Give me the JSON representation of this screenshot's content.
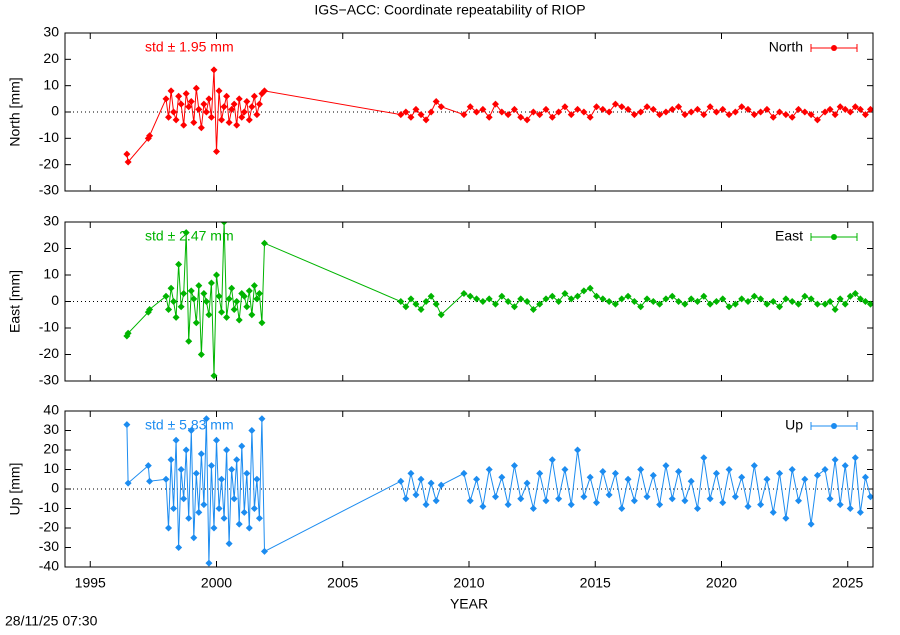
{
  "title": "IGS−ACC: Coordinate repeatability of RIOP",
  "xlabel": "YEAR",
  "footer": "28/11/25 07:30",
  "chart_data": [
    {
      "type": "line",
      "ylabel": "North [mm]",
      "annotation": "std ± 1.95 mm",
      "legend": "top right",
      "xlim": [
        1994,
        2026
      ],
      "xticks": [
        1995,
        2000,
        2005,
        2010,
        2015,
        2020,
        2025
      ],
      "ylim": [
        -30,
        30
      ],
      "yticks": [
        -30,
        -20,
        -10,
        0,
        10,
        20,
        30
      ],
      "x": [
        1996.45,
        1996.5,
        1997.3,
        1997.35,
        1998.0,
        1998.1,
        1998.2,
        1998.3,
        1998.4,
        1998.5,
        1998.6,
        1998.7,
        1998.8,
        1998.9,
        1999.0,
        1999.1,
        1999.2,
        1999.3,
        1999.4,
        1999.5,
        1999.6,
        1999.7,
        1999.8,
        1999.9,
        2000.0,
        2000.1,
        2000.2,
        2000.3,
        2000.4,
        2000.5,
        2000.6,
        2000.7,
        2000.8,
        2000.9,
        2001.0,
        2001.1,
        2001.2,
        2001.3,
        2001.4,
        2001.5,
        2001.6,
        2001.7,
        2001.8,
        2001.9,
        2007.3,
        2007.5,
        2007.7,
        2007.9,
        2008.1,
        2008.3,
        2008.5,
        2008.7,
        2008.9,
        2009.8,
        2010.05,
        2010.3,
        2010.55,
        2010.8,
        2011.05,
        2011.3,
        2011.55,
        2011.8,
        2012.05,
        2012.3,
        2012.55,
        2012.8,
        2013.05,
        2013.3,
        2013.55,
        2013.8,
        2014.05,
        2014.3,
        2014.55,
        2014.8,
        2015.05,
        2015.3,
        2015.55,
        2015.8,
        2016.05,
        2016.3,
        2016.55,
        2016.8,
        2017.05,
        2017.3,
        2017.55,
        2017.8,
        2018.05,
        2018.3,
        2018.55,
        2018.8,
        2019.05,
        2019.3,
        2019.55,
        2019.8,
        2020.05,
        2020.3,
        2020.55,
        2020.8,
        2021.05,
        2021.3,
        2021.55,
        2021.8,
        2022.05,
        2022.3,
        2022.55,
        2022.8,
        2023.05,
        2023.3,
        2023.55,
        2023.8,
        2024.1,
        2024.3,
        2024.5,
        2024.7,
        2024.9,
        2025.1,
        2025.3,
        2025.5,
        2025.7,
        2025.9
      ],
      "series": [
        {
          "name": "North",
          "color": "#ff0000",
          "values": [
            -16,
            -19,
            -10,
            -9,
            5,
            -2,
            8,
            0,
            -3,
            6,
            3,
            -5,
            7,
            2,
            4,
            -4,
            9,
            1,
            -6,
            3,
            0,
            5,
            -2,
            16,
            -15,
            8,
            -3,
            2,
            6,
            -4,
            1,
            3,
            -5,
            5,
            -2,
            0,
            4,
            -3,
            2,
            6,
            -1,
            3,
            7,
            8,
            -1,
            0,
            -2,
            1,
            -1,
            -3,
            0,
            4,
            2,
            -1,
            2,
            0,
            1,
            -2,
            3,
            0,
            -1,
            1,
            -2,
            -3,
            0,
            -1,
            1,
            -2,
            0,
            2,
            -1,
            1,
            0,
            -2,
            2,
            1,
            0,
            3,
            2,
            1,
            -1,
            0,
            2,
            1,
            -1,
            0,
            1,
            2,
            -1,
            0,
            1,
            -1,
            2,
            0,
            1,
            -1,
            0,
            2,
            1,
            -1,
            0,
            1,
            -2,
            0,
            -1,
            -2,
            1,
            0,
            -1,
            -3,
            0,
            1,
            -1,
            2,
            1,
            0,
            2,
            1,
            -1,
            1
          ]
        }
      ]
    },
    {
      "type": "line",
      "ylabel": "East [mm]",
      "annotation": "std ± 2.47 mm",
      "legend": "top right",
      "xlim": [
        1994,
        2026
      ],
      "xticks": [
        1995,
        2000,
        2005,
        2010,
        2015,
        2020,
        2025
      ],
      "ylim": [
        -30,
        30
      ],
      "yticks": [
        -30,
        -20,
        -10,
        0,
        10,
        20,
        30
      ],
      "x": [
        1996.45,
        1996.5,
        1997.3,
        1997.35,
        1998.0,
        1998.1,
        1998.2,
        1998.3,
        1998.4,
        1998.5,
        1998.6,
        1998.7,
        1998.8,
        1998.9,
        1999.0,
        1999.1,
        1999.2,
        1999.3,
        1999.4,
        1999.5,
        1999.6,
        1999.7,
        1999.8,
        1999.9,
        2000.0,
        2000.1,
        2000.2,
        2000.3,
        2000.4,
        2000.5,
        2000.6,
        2000.7,
        2000.8,
        2000.9,
        2001.0,
        2001.1,
        2001.2,
        2001.3,
        2001.4,
        2001.5,
        2001.6,
        2001.7,
        2001.8,
        2001.9,
        2007.3,
        2007.5,
        2007.7,
        2007.9,
        2008.1,
        2008.3,
        2008.5,
        2008.7,
        2008.9,
        2009.8,
        2010.05,
        2010.3,
        2010.55,
        2010.8,
        2011.05,
        2011.3,
        2011.55,
        2011.8,
        2012.05,
        2012.3,
        2012.55,
        2012.8,
        2013.05,
        2013.3,
        2013.55,
        2013.8,
        2014.05,
        2014.3,
        2014.55,
        2014.8,
        2015.05,
        2015.3,
        2015.55,
        2015.8,
        2016.05,
        2016.3,
        2016.55,
        2016.8,
        2017.05,
        2017.3,
        2017.55,
        2017.8,
        2018.05,
        2018.3,
        2018.55,
        2018.8,
        2019.05,
        2019.3,
        2019.55,
        2019.8,
        2020.05,
        2020.3,
        2020.55,
        2020.8,
        2021.05,
        2021.3,
        2021.55,
        2021.8,
        2022.05,
        2022.3,
        2022.55,
        2022.8,
        2023.05,
        2023.3,
        2023.55,
        2023.8,
        2024.1,
        2024.3,
        2024.5,
        2024.7,
        2024.9,
        2025.1,
        2025.3,
        2025.5,
        2025.7,
        2025.9
      ],
      "series": [
        {
          "name": "East",
          "color": "#00b400",
          "values": [
            -13,
            -12,
            -4,
            -3,
            2,
            -3,
            5,
            0,
            -6,
            14,
            -2,
            3,
            26,
            -15,
            4,
            1,
            -8,
            6,
            -20,
            3,
            0,
            -5,
            7,
            -28,
            10,
            2,
            -4,
            30,
            -6,
            1,
            5,
            -3,
            0,
            -7,
            3,
            2,
            -2,
            4,
            -5,
            6,
            1,
            3,
            -8,
            22,
            0,
            -2,
            1,
            -1,
            -3,
            0,
            2,
            -1,
            -5,
            3,
            2,
            1,
            0,
            1,
            -1,
            2,
            0,
            -2,
            1,
            0,
            -3,
            -1,
            1,
            2,
            0,
            3,
            1,
            2,
            4,
            5,
            2,
            1,
            0,
            -1,
            1,
            2,
            0,
            -2,
            1,
            0,
            -1,
            1,
            2,
            0,
            -1,
            1,
            0,
            2,
            -1,
            0,
            1,
            -2,
            -1,
            1,
            0,
            2,
            1,
            -1,
            0,
            -2,
            1,
            0,
            -1,
            2,
            1,
            -1,
            -1,
            0,
            -3,
            1,
            -1,
            2,
            3,
            1,
            0,
            -1
          ]
        }
      ]
    },
    {
      "type": "line",
      "ylabel": "Up [mm]",
      "annotation": "std ± 5.83 mm",
      "legend": "top right",
      "xlim": [
        1994,
        2026
      ],
      "xticks": [
        1995,
        2000,
        2005,
        2010,
        2015,
        2020,
        2025
      ],
      "ylim": [
        -40,
        40
      ],
      "yticks": [
        -40,
        -30,
        -20,
        -10,
        0,
        10,
        20,
        30,
        40
      ],
      "x": [
        1996.45,
        1996.5,
        1997.3,
        1997.35,
        1998.0,
        1998.1,
        1998.2,
        1998.3,
        1998.4,
        1998.5,
        1998.6,
        1998.7,
        1998.8,
        1998.9,
        1999.0,
        1999.1,
        1999.2,
        1999.3,
        1999.4,
        1999.5,
        1999.6,
        1999.7,
        1999.8,
        1999.9,
        2000.0,
        2000.1,
        2000.2,
        2000.3,
        2000.4,
        2000.5,
        2000.6,
        2000.7,
        2000.8,
        2000.9,
        2001.0,
        2001.1,
        2001.2,
        2001.3,
        2001.4,
        2001.5,
        2001.6,
        2001.7,
        2001.8,
        2001.9,
        2007.3,
        2007.5,
        2007.7,
        2007.9,
        2008.1,
        2008.3,
        2008.5,
        2008.7,
        2008.9,
        2009.8,
        2010.05,
        2010.3,
        2010.55,
        2010.8,
        2011.05,
        2011.3,
        2011.55,
        2011.8,
        2012.05,
        2012.3,
        2012.55,
        2012.8,
        2013.05,
        2013.3,
        2013.55,
        2013.8,
        2014.05,
        2014.3,
        2014.55,
        2014.8,
        2015.05,
        2015.3,
        2015.55,
        2015.8,
        2016.05,
        2016.3,
        2016.55,
        2016.8,
        2017.05,
        2017.3,
        2017.55,
        2017.8,
        2018.05,
        2018.3,
        2018.55,
        2018.8,
        2019.05,
        2019.3,
        2019.55,
        2019.8,
        2020.05,
        2020.3,
        2020.55,
        2020.8,
        2021.05,
        2021.3,
        2021.55,
        2021.8,
        2022.05,
        2022.3,
        2022.55,
        2022.8,
        2023.05,
        2023.3,
        2023.55,
        2023.8,
        2024.1,
        2024.3,
        2024.5,
        2024.7,
        2024.9,
        2025.1,
        2025.3,
        2025.5,
        2025.7,
        2025.9
      ],
      "series": [
        {
          "name": "Up",
          "color": "#1c8cf0",
          "values": [
            33,
            3,
            12,
            4,
            5,
            -20,
            15,
            -10,
            25,
            -30,
            10,
            -5,
            20,
            -15,
            30,
            -25,
            8,
            -12,
            18,
            -8,
            36,
            -38,
            12,
            -20,
            25,
            -10,
            5,
            -15,
            20,
            -28,
            10,
            -5,
            15,
            -18,
            22,
            -12,
            8,
            -20,
            30,
            -10,
            5,
            -15,
            36,
            -32,
            4,
            -5,
            8,
            -3,
            5,
            -8,
            3,
            -6,
            2,
            8,
            -6,
            5,
            -9,
            10,
            -4,
            6,
            -8,
            12,
            -5,
            3,
            -10,
            8,
            -6,
            15,
            -5,
            10,
            -8,
            20,
            -4,
            6,
            -7,
            9,
            -3,
            8,
            -10,
            5,
            -6,
            10,
            -4,
            7,
            -8,
            12,
            -5,
            9,
            -6,
            4,
            -10,
            16,
            -5,
            8,
            -7,
            10,
            -4,
            6,
            -9,
            12,
            -8,
            5,
            -12,
            8,
            -15,
            10,
            -6,
            5,
            -18,
            7,
            10,
            -5,
            15,
            -8,
            12,
            -10,
            16,
            -12,
            6,
            -4
          ]
        }
      ]
    }
  ]
}
